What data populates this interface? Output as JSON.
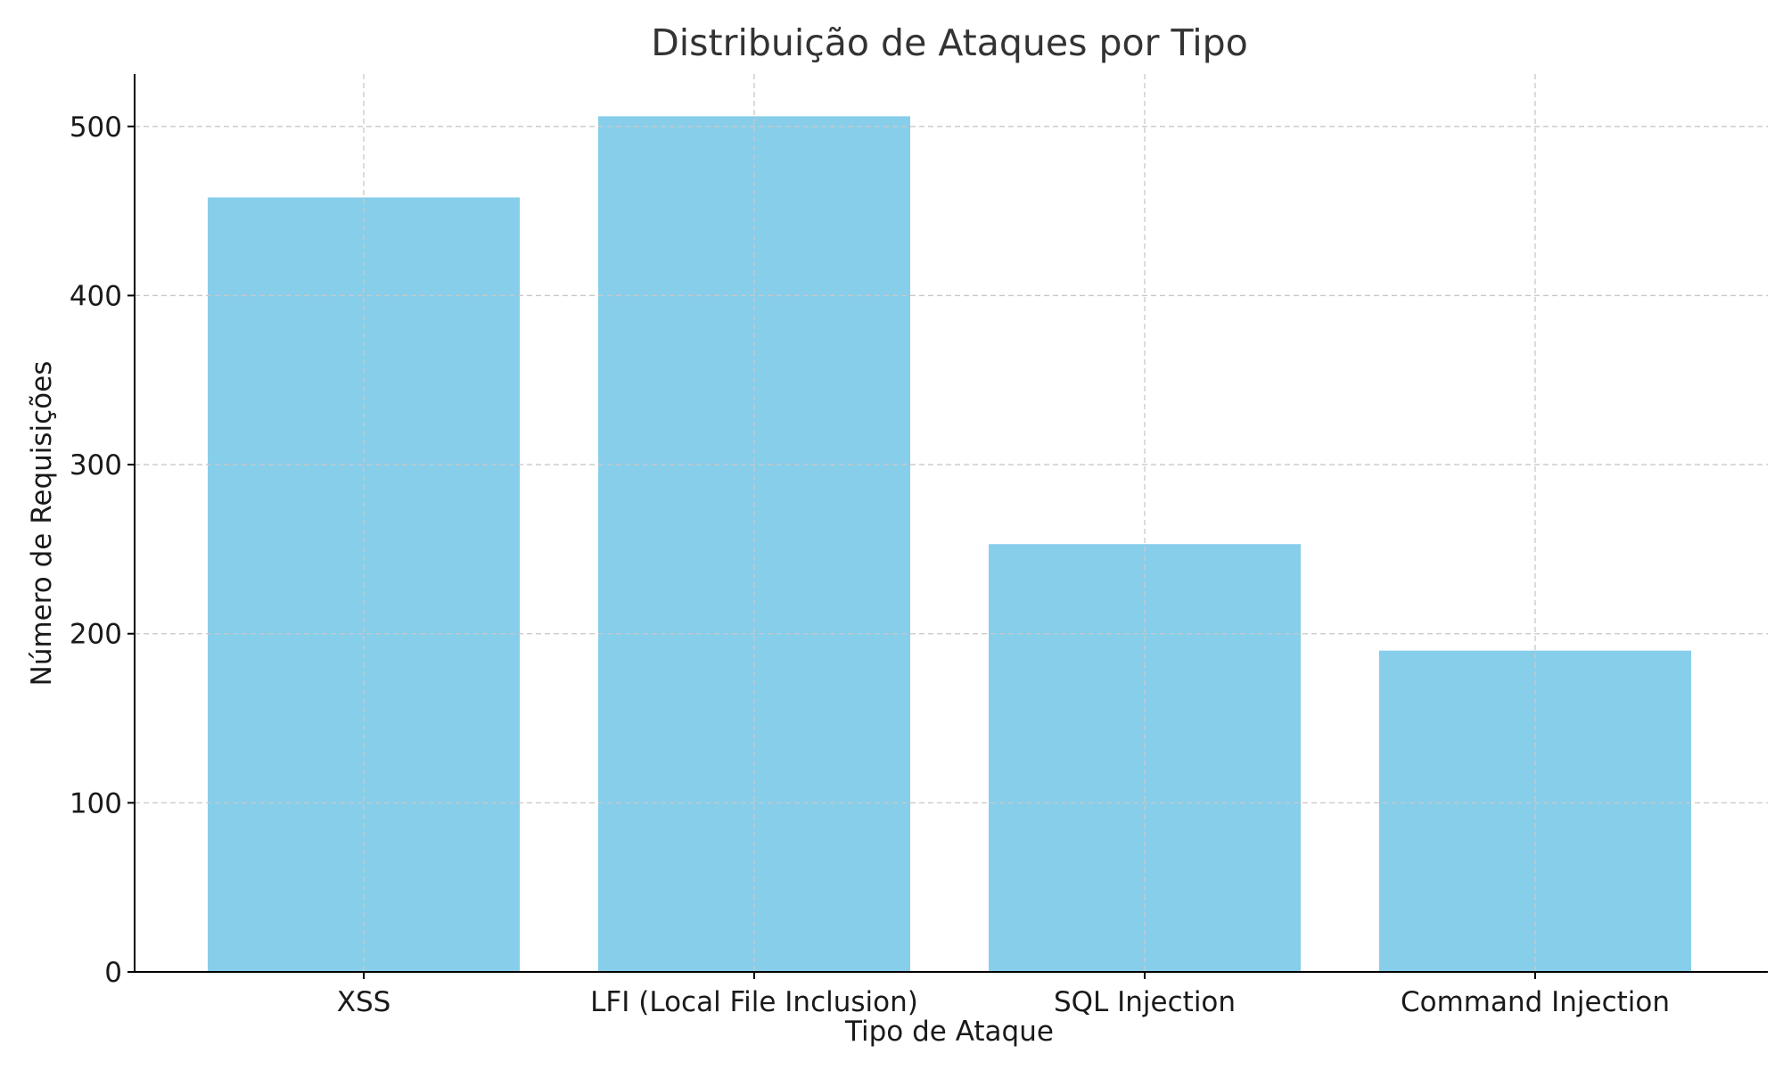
{
  "chart_data": {
    "type": "bar",
    "title": "Distribuição de Ataques por Tipo",
    "xlabel": "Tipo de Ataque",
    "ylabel": "Número de Requisições",
    "categories": [
      "XSS",
      "LFI (Local File Inclusion)",
      "SQL Injection",
      "Command Injection"
    ],
    "values": [
      458,
      506,
      253,
      190
    ],
    "ylim": [
      0,
      531
    ],
    "yticks": [
      0,
      100,
      200,
      300,
      400,
      500
    ],
    "grid": true,
    "bar_color": "#87ceeb"
  }
}
